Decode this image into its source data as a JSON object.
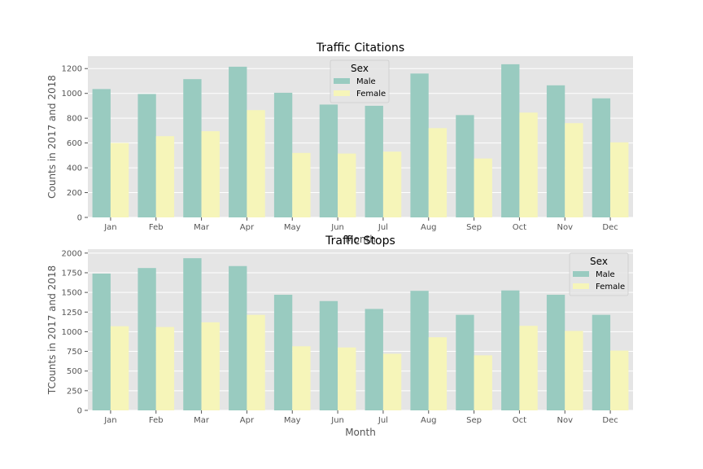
{
  "colors": {
    "background": "#e5e5e5",
    "grid": "#ffffff",
    "male": "#99cbc0",
    "female": "#f6f5b9"
  },
  "chart_data": [
    {
      "type": "bar",
      "title": "Traffic Citations",
      "xlabel": "Month",
      "ylabel": "Counts in 2017 and 2018",
      "categories": [
        "Jan",
        "Feb",
        "Mar",
        "Apr",
        "May",
        "Jun",
        "Jul",
        "Aug",
        "Sep",
        "Oct",
        "Nov",
        "Dec"
      ],
      "ylim": [
        0,
        1300
      ],
      "yticks": [
        0,
        200,
        400,
        600,
        800,
        1000,
        1200
      ],
      "grid": true,
      "legend": {
        "title": "Sex",
        "position": "top-center"
      },
      "series": [
        {
          "name": "Male",
          "values": [
            1035,
            995,
            1115,
            1215,
            1005,
            910,
            900,
            1160,
            825,
            1235,
            1065,
            960
          ]
        },
        {
          "name": "Female",
          "values": [
            600,
            655,
            695,
            865,
            520,
            515,
            530,
            720,
            475,
            845,
            760,
            605
          ]
        }
      ]
    },
    {
      "type": "bar",
      "title": "Traffic Stops",
      "xlabel": "Month",
      "ylabel": "TCounts in 2017 and 2018",
      "categories": [
        "Jan",
        "Feb",
        "Mar",
        "Apr",
        "May",
        "Jun",
        "Jul",
        "Aug",
        "Sep",
        "Oct",
        "Nov",
        "Dec"
      ],
      "ylim": [
        0,
        2050
      ],
      "yticks": [
        0,
        250,
        500,
        750,
        1000,
        1250,
        1500,
        1750,
        2000
      ],
      "grid": true,
      "legend": {
        "title": "Sex",
        "position": "top-right"
      },
      "series": [
        {
          "name": "Male",
          "values": [
            1740,
            1810,
            1935,
            1835,
            1470,
            1390,
            1290,
            1520,
            1215,
            1525,
            1470,
            1215
          ]
        },
        {
          "name": "Female",
          "values": [
            1070,
            1060,
            1120,
            1215,
            815,
            800,
            720,
            930,
            700,
            1075,
            1010,
            760
          ]
        }
      ]
    }
  ]
}
